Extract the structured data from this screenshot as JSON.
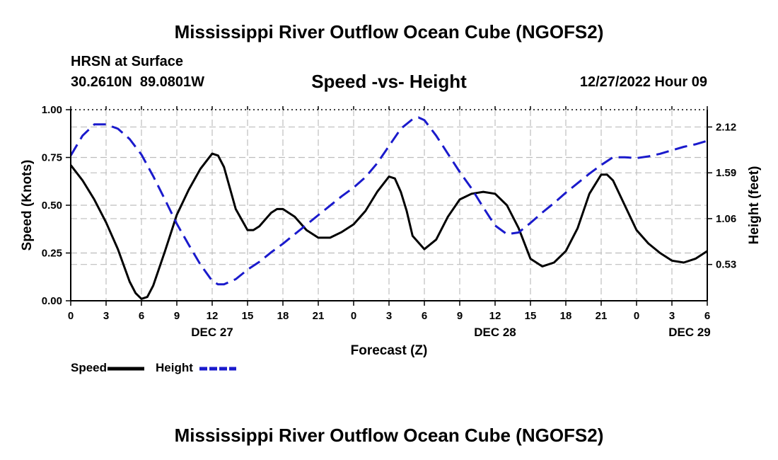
{
  "header": {
    "main_title": "Mississippi River Outflow Ocean Cube (NGOFS2)",
    "station": "HRSN at Surface",
    "coords": "30.2610N  89.0801W",
    "subtitle": "Speed -vs- Height",
    "date_hour": "12/27/2022 Hour 09",
    "footer_title": "Mississippi River Outflow Ocean Cube (NGOFS2)"
  },
  "chart_data": {
    "type": "line",
    "title": "Speed -vs- Height",
    "xlabel": "Forecast (Z)",
    "ylabel": "Speed (Knots)",
    "y2label": "Height (feet)",
    "xlim": [
      0,
      54
    ],
    "ylim": [
      0,
      1.0
    ],
    "y2lim": [
      0.11,
      2.32
    ],
    "x_ticks": [
      0,
      3,
      6,
      9,
      12,
      15,
      18,
      21,
      24,
      27,
      30,
      33,
      36,
      39,
      42,
      45,
      48,
      51,
      54
    ],
    "x_tick_labels": [
      "0",
      "3",
      "6",
      "9",
      "12",
      "15",
      "18",
      "21",
      "0",
      "3",
      "6",
      "9",
      "12",
      "15",
      "18",
      "21",
      "0",
      "3",
      "6"
    ],
    "date_labels": [
      {
        "x": 12,
        "label": "DEC 27"
      },
      {
        "x": 36,
        "label": "DEC 28"
      },
      {
        "x": 52.5,
        "label": "DEC 29"
      }
    ],
    "y_ticks": [
      0,
      0.25,
      0.5,
      0.75,
      1.0
    ],
    "y_tick_labels": [
      "0.00",
      "0.25",
      "0.50",
      "0.75",
      "1.00"
    ],
    "y2_ticks": [
      0.53,
      1.06,
      1.59,
      2.12
    ],
    "y2_tick_labels": [
      "0.53",
      "1.06",
      "1.59",
      "2.12"
    ],
    "legend_placement": "bottom-left",
    "series": [
      {
        "name": "Speed",
        "axis": "left",
        "color": "#000000",
        "dash": "solid",
        "x": [
          0,
          1,
          2,
          3,
          4,
          5,
          5.5,
          6,
          6.5,
          7,
          8,
          9,
          10,
          11,
          12,
          12.5,
          13,
          14,
          15,
          15.5,
          16,
          17,
          17.5,
          18,
          19,
          20,
          21,
          22,
          23,
          24,
          25,
          26,
          27,
          27.5,
          28,
          28.5,
          29,
          30,
          31,
          32,
          33,
          34,
          35,
          36,
          37,
          38,
          39,
          40,
          41,
          42,
          43,
          44,
          45,
          45.5,
          46,
          47,
          48,
          49,
          50,
          51,
          52,
          53,
          54
        ],
        "y": [
          0.71,
          0.63,
          0.53,
          0.41,
          0.27,
          0.1,
          0.04,
          0.01,
          0.02,
          0.08,
          0.26,
          0.45,
          0.58,
          0.69,
          0.77,
          0.76,
          0.7,
          0.48,
          0.37,
          0.37,
          0.39,
          0.46,
          0.48,
          0.48,
          0.44,
          0.37,
          0.33,
          0.33,
          0.36,
          0.4,
          0.47,
          0.57,
          0.65,
          0.64,
          0.57,
          0.47,
          0.34,
          0.27,
          0.32,
          0.44,
          0.53,
          0.56,
          0.57,
          0.56,
          0.5,
          0.38,
          0.22,
          0.18,
          0.2,
          0.26,
          0.38,
          0.56,
          0.66,
          0.66,
          0.63,
          0.5,
          0.37,
          0.3,
          0.25,
          0.21,
          0.2,
          0.22,
          0.26
        ]
      },
      {
        "name": "Height",
        "axis": "right",
        "color": "#1a1acc",
        "dash": "dashed",
        "x": [
          0,
          1,
          2,
          3,
          4,
          5,
          6,
          7,
          8,
          9,
          10,
          11,
          12,
          12.5,
          13,
          14,
          15,
          16,
          17,
          18,
          19,
          20,
          21,
          22,
          23,
          24,
          25,
          26,
          27,
          28,
          29,
          29.5,
          30,
          31,
          32,
          33,
          34,
          35,
          36,
          37,
          38,
          39,
          40,
          41,
          42,
          43,
          44,
          45,
          46,
          47,
          48,
          49,
          50,
          51,
          52,
          53,
          54
        ],
        "y": [
          1.79,
          2.02,
          2.15,
          2.15,
          2.1,
          1.98,
          1.8,
          1.55,
          1.28,
          1.0,
          0.76,
          0.53,
          0.34,
          0.3,
          0.3,
          0.36,
          0.47,
          0.56,
          0.67,
          0.77,
          0.88,
          0.99,
          1.1,
          1.21,
          1.32,
          1.42,
          1.54,
          1.7,
          1.9,
          2.1,
          2.21,
          2.23,
          2.2,
          2.02,
          1.81,
          1.6,
          1.41,
          1.19,
          0.98,
          0.88,
          0.9,
          1.01,
          1.13,
          1.24,
          1.36,
          1.47,
          1.58,
          1.68,
          1.77,
          1.77,
          1.76,
          1.78,
          1.81,
          1.85,
          1.89,
          1.92,
          1.96
        ]
      }
    ]
  }
}
